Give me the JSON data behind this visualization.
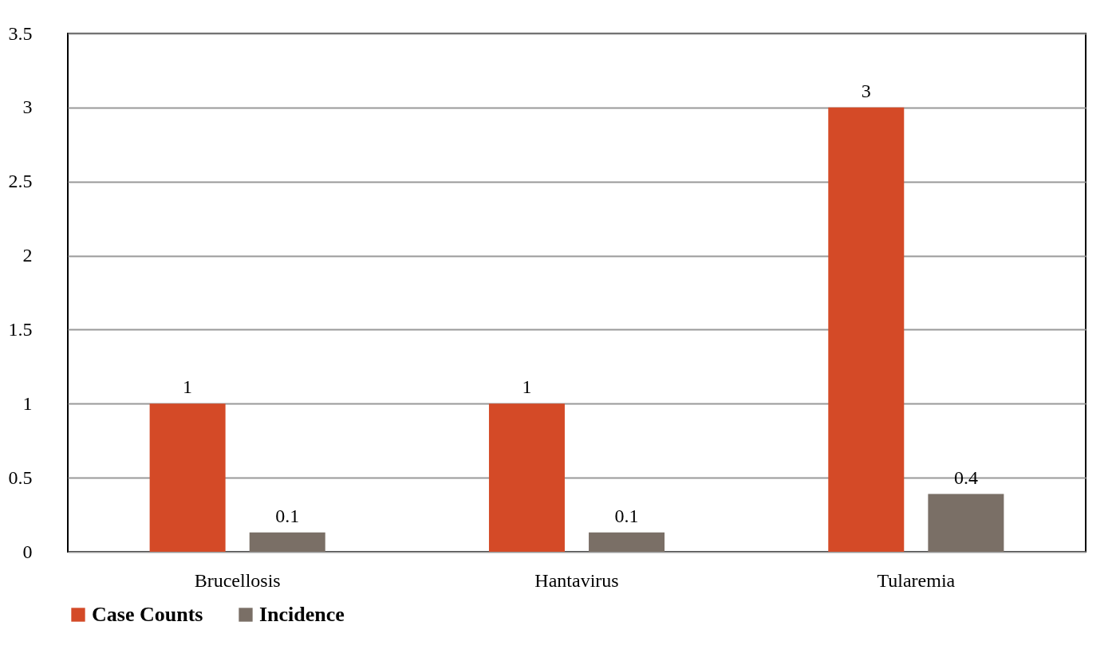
{
  "chart_data": {
    "type": "bar",
    "categories": [
      "Brucellosis",
      "Hantavirus",
      "Tularemia"
    ],
    "series": [
      {
        "name": "Case Counts",
        "color": "#d44a27",
        "values": [
          1,
          1,
          3
        ],
        "value_labels": [
          "1",
          "1",
          "3"
        ]
      },
      {
        "name": "Incidence",
        "color": "#7a6f66",
        "values": [
          0.13,
          0.13,
          0.39
        ],
        "value_labels": [
          "0.1",
          "0.1",
          "0.4"
        ]
      }
    ],
    "ylim": [
      0,
      3.5
    ],
    "yticks": [
      0,
      0.5,
      1,
      1.5,
      2,
      2.5,
      3,
      3.5
    ],
    "grid": "y",
    "legend": "bottom"
  }
}
